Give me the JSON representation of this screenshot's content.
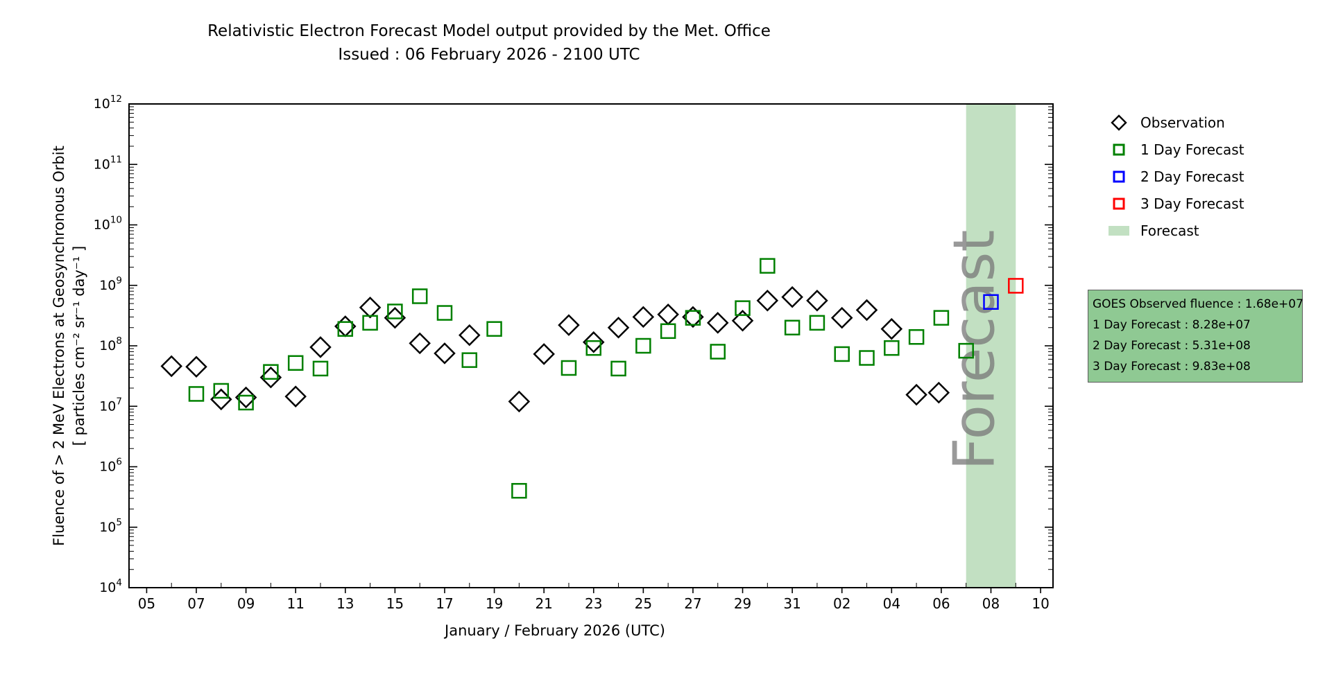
{
  "title": "Relativistic Electron Forecast Model output provided by the Met. Office",
  "subtitle": "Issued : 06 February 2026 - 2100 UTC",
  "watermark": "Forecast",
  "legend": {
    "entries": [
      {
        "label": "Observation",
        "marker": "diamond",
        "color": "#000000"
      },
      {
        "label": "1 Day Forecast",
        "marker": "square",
        "color": "#008000"
      },
      {
        "label": "2 Day Forecast",
        "marker": "square",
        "color": "#0000ff"
      },
      {
        "label": "3 Day Forecast",
        "marker": "square",
        "color": "#ff0000"
      },
      {
        "label": "Forecast",
        "marker": "patch",
        "color": "#c2e0c2"
      }
    ]
  },
  "info_box": {
    "bg_color": "#8fc993",
    "lines": [
      "GOES Observed fluence : 1.68e+07",
      "1 Day Forecast : 8.28e+07",
      "2 Day Forecast : 5.31e+08",
      "3 Day Forecast : 9.83e+08"
    ]
  },
  "chart_data": {
    "type": "scatter",
    "title": "Relativistic Electron Forecast Model output provided by the Met. Office",
    "subtitle": "Issued : 06 February 2026 - 2100 UTC",
    "xlabel": "January / February 2026 (UTC)",
    "ylabel_line1": "Fluence of > 2 MeV Electrons at Geosynchronous Orbit",
    "ylabel_line2": "[ particles cm⁻² sr⁻¹ day⁻¹ ]",
    "y_scale": "log",
    "ylim": [
      10000.0,
      1000000000000.0
    ],
    "y_tick_exponents": [
      4,
      5,
      6,
      7,
      8,
      9,
      10,
      11,
      12
    ],
    "x_axis_note": "day-of-month axis, Jan 05 through Feb 10 2026; Feb days continue as Jan day + 31",
    "x_range_days": [
      4.29,
      41.5
    ],
    "x_ticks": [
      {
        "day": 5,
        "label": "05"
      },
      {
        "day": 7,
        "label": "07"
      },
      {
        "day": 9,
        "label": "09"
      },
      {
        "day": 11,
        "label": "11"
      },
      {
        "day": 13,
        "label": "13"
      },
      {
        "day": 15,
        "label": "15"
      },
      {
        "day": 17,
        "label": "17"
      },
      {
        "day": 19,
        "label": "19"
      },
      {
        "day": 21,
        "label": "21"
      },
      {
        "day": 23,
        "label": "23"
      },
      {
        "day": 25,
        "label": "25"
      },
      {
        "day": 27,
        "label": "27"
      },
      {
        "day": 29,
        "label": "29"
      },
      {
        "day": 31,
        "label": "31"
      },
      {
        "day": 33,
        "label": "02"
      },
      {
        "day": 35,
        "label": "04"
      },
      {
        "day": 37,
        "label": "06"
      },
      {
        "day": 39,
        "label": "08"
      },
      {
        "day": 41,
        "label": "10"
      }
    ],
    "forecast_band": {
      "day_start": 38,
      "day_end": 40,
      "color": "#c2e0c2"
    },
    "watermark": {
      "text": "Forecast",
      "color": "#777777"
    },
    "series": [
      {
        "name": "Observation",
        "marker": "diamond",
        "color": "#000000",
        "points": [
          [
            6,
            46000000.0
          ],
          [
            7,
            45000000.0
          ],
          [
            8,
            13000000.0
          ],
          [
            9,
            14000000.0
          ],
          [
            10,
            30000000.0
          ],
          [
            11,
            14500000.0
          ],
          [
            12,
            95000000.0
          ],
          [
            13,
            210000000.0
          ],
          [
            14,
            430000000.0
          ],
          [
            15,
            290000000.0
          ],
          [
            16,
            110000000.0
          ],
          [
            17,
            75000000.0
          ],
          [
            18,
            150000000.0
          ],
          [
            20,
            12000000.0
          ],
          [
            21,
            73000000.0
          ],
          [
            22,
            220000000.0
          ],
          [
            23,
            115000000.0
          ],
          [
            24,
            200000000.0
          ],
          [
            25,
            300000000.0
          ],
          [
            26,
            330000000.0
          ],
          [
            27,
            300000000.0
          ],
          [
            28,
            240000000.0
          ],
          [
            29,
            260000000.0
          ],
          [
            30,
            560000000.0
          ],
          [
            31,
            640000000.0
          ],
          [
            32,
            560000000.0
          ],
          [
            33,
            290000000.0
          ],
          [
            34,
            390000000.0
          ],
          [
            35,
            190000000.0
          ],
          [
            36,
            15500000.0
          ],
          [
            36.9,
            16800000.0
          ]
        ]
      },
      {
        "name": "1 Day Forecast",
        "marker": "square",
        "color": "#008000",
        "points": [
          [
            7,
            16000000.0
          ],
          [
            8,
            18000000.0
          ],
          [
            9,
            11500000.0
          ],
          [
            10,
            37000000.0
          ],
          [
            11,
            52000000.0
          ],
          [
            12,
            42000000.0
          ],
          [
            13,
            190000000.0
          ],
          [
            14,
            240000000.0
          ],
          [
            15,
            370000000.0
          ],
          [
            16,
            660000000.0
          ],
          [
            17,
            350000000.0
          ],
          [
            18,
            58000000.0
          ],
          [
            19,
            190000000.0
          ],
          [
            20,
            400000.0
          ],
          [
            22,
            43000000.0
          ],
          [
            23,
            92000000.0
          ],
          [
            24,
            42000000.0
          ],
          [
            25,
            100000000.0
          ],
          [
            26,
            175000000.0
          ],
          [
            27,
            290000000.0
          ],
          [
            28,
            80000000.0
          ],
          [
            29,
            420000000.0
          ],
          [
            30,
            2100000000.0
          ],
          [
            31,
            200000000.0
          ],
          [
            32,
            240000000.0
          ],
          [
            33,
            73000000.0
          ],
          [
            34,
            63000000.0
          ],
          [
            35,
            92000000.0
          ],
          [
            36,
            140000000.0
          ],
          [
            37,
            290000000.0
          ],
          [
            38,
            82800000.0
          ]
        ]
      },
      {
        "name": "2 Day Forecast",
        "marker": "square",
        "color": "#0000ff",
        "points": [
          [
            39,
            531000000.0
          ]
        ]
      },
      {
        "name": "3 Day Forecast",
        "marker": "square",
        "color": "#ff0000",
        "points": [
          [
            40,
            983000000.0
          ]
        ]
      }
    ]
  }
}
